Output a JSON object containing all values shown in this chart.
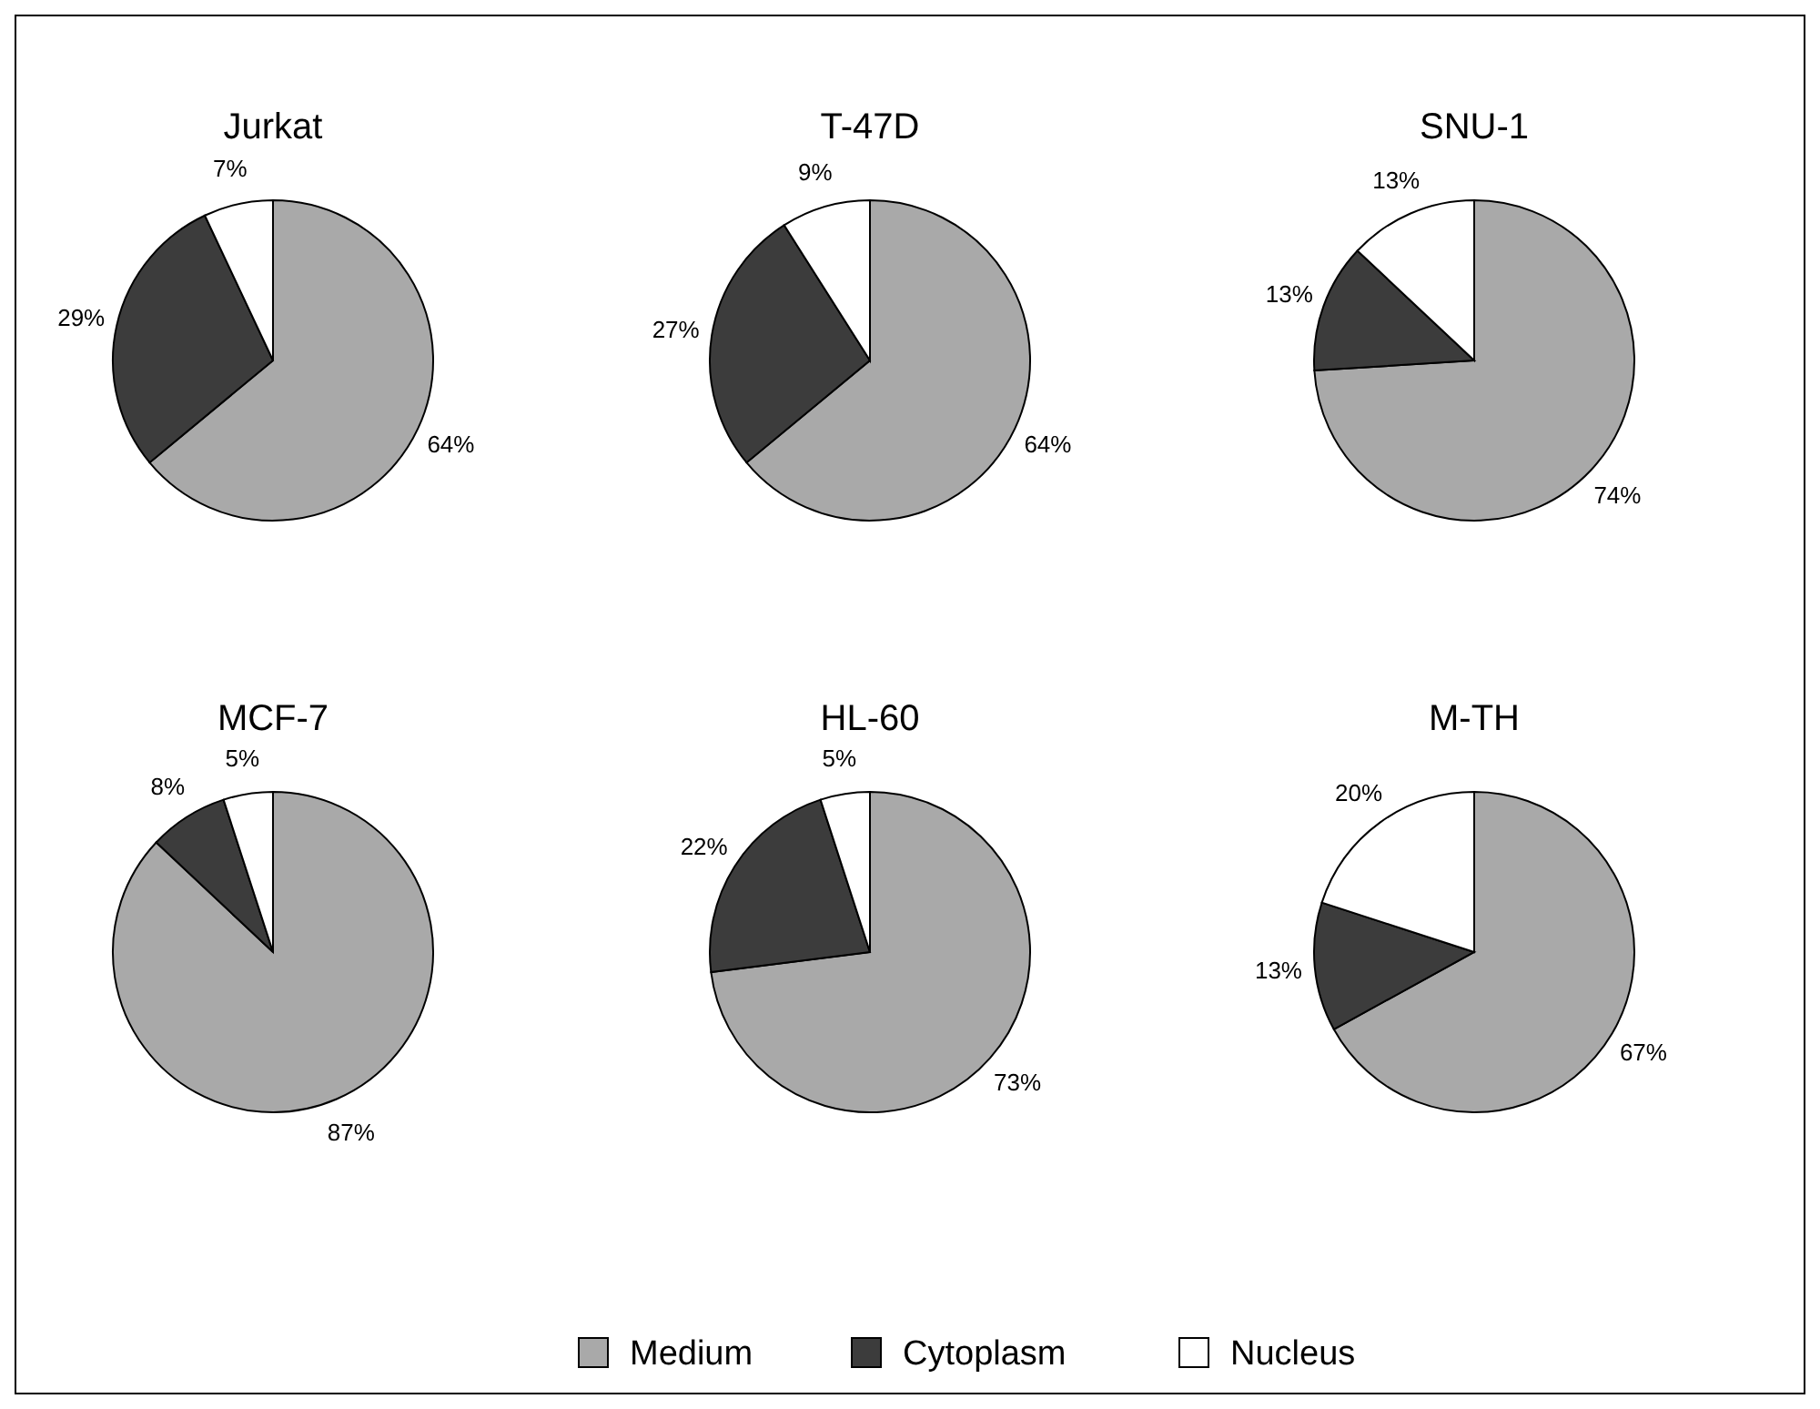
{
  "chart_data": [
    {
      "type": "pie",
      "title": "Jurkat",
      "categories": [
        "Medium",
        "Cytoplasm",
        "Nucleus"
      ],
      "values": [
        64,
        29,
        7
      ],
      "value_labels": [
        "64%",
        "29%",
        "7%"
      ],
      "colors": [
        "#a9a9a9",
        "#3c3c3c",
        "#ffffff"
      ],
      "legend": "bottom"
    },
    {
      "type": "pie",
      "title": "T-47D",
      "categories": [
        null,
        null,
        null
      ],
      "values": [
        64,
        27,
        9
      ],
      "value_labels": [
        "64%",
        "27%",
        "9%"
      ],
      "colors": [
        "#a9a9a9",
        "#3c3c3c",
        "#ffffff"
      ]
    },
    {
      "type": "pie",
      "title": "SNU-1",
      "categories": [
        null,
        null,
        null
      ],
      "values": [
        74,
        13,
        13
      ],
      "value_labels": [
        "74%",
        "13%",
        "13%"
      ],
      "colors": [
        "#a9a9a9",
        "#3c3c3c",
        "#ffffff"
      ]
    },
    {
      "type": "pie",
      "title": "MCF-7",
      "categories": [
        null,
        null,
        null
      ],
      "values": [
        87,
        8,
        5
      ],
      "value_labels": [
        "87%",
        "8%",
        "5%"
      ],
      "colors": [
        "#a9a9a9",
        "#3c3c3c",
        "#ffffff"
      ]
    },
    {
      "type": "pie",
      "title": "HL-60",
      "categories": [
        null,
        null,
        null
      ],
      "values": [
        73,
        22,
        5
      ],
      "value_labels": [
        "73%",
        "22%",
        "5%"
      ],
      "colors": [
        "#a9a9a9",
        "#3c3c3c",
        "#ffffff"
      ]
    },
    {
      "type": "pie",
      "title": "M-TH",
      "categories": [
        null,
        null,
        null
      ],
      "values": [
        67,
        13,
        20
      ],
      "value_labels": [
        "67%",
        "13%",
        "20%"
      ],
      "colors": [
        "#a9a9a9",
        "#3c3c3c",
        "#ffffff"
      ]
    }
  ]
}
